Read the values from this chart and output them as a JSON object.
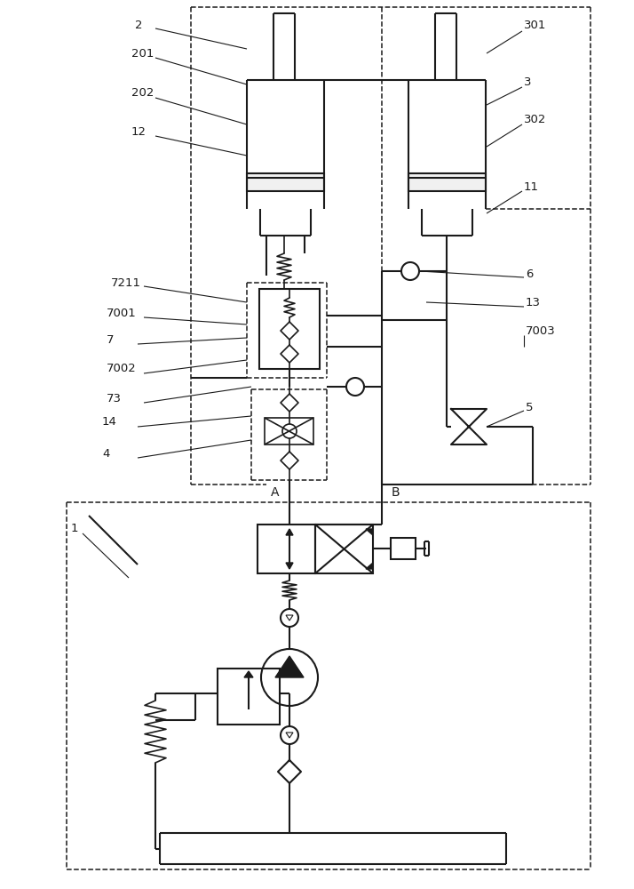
{
  "bg": "#ffffff",
  "lc": "#1a1a1a",
  "lw": 1.5,
  "lw2": 1.2,
  "dlw": 1.1,
  "fs": 9.5,
  "fig_w": 7.14,
  "fig_h": 10.0,
  "dpi": 100
}
